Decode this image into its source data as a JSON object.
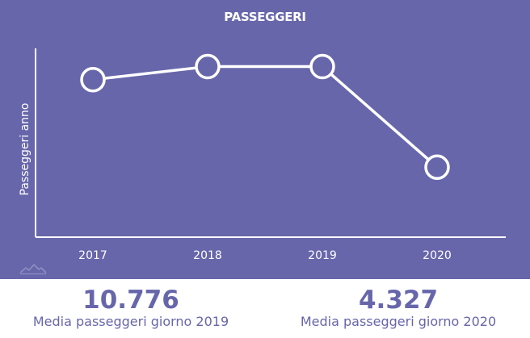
{
  "chart_data": {
    "type": "line",
    "title": "PASSEGGERI",
    "xlabel": "",
    "ylabel": "Passeggeri anno",
    "categories": [
      "2017",
      "2018",
      "2019",
      "2020"
    ],
    "series": [
      {
        "values": [
          3.6,
          3.9,
          3.9,
          1.6
        ]
      }
    ],
    "ylim": [
      0,
      4.5
    ],
    "grid": false,
    "legend": "none",
    "colors": {
      "background": "#6766ab",
      "line": "#ffffff"
    }
  },
  "stats": [
    {
      "value": "10.776",
      "label": "Media passeggeri giorno 2019"
    },
    {
      "value": "4.327",
      "label": "Media passeggeri giorno 2020"
    }
  ],
  "logo": {
    "icon": "mountains-logo-icon"
  }
}
